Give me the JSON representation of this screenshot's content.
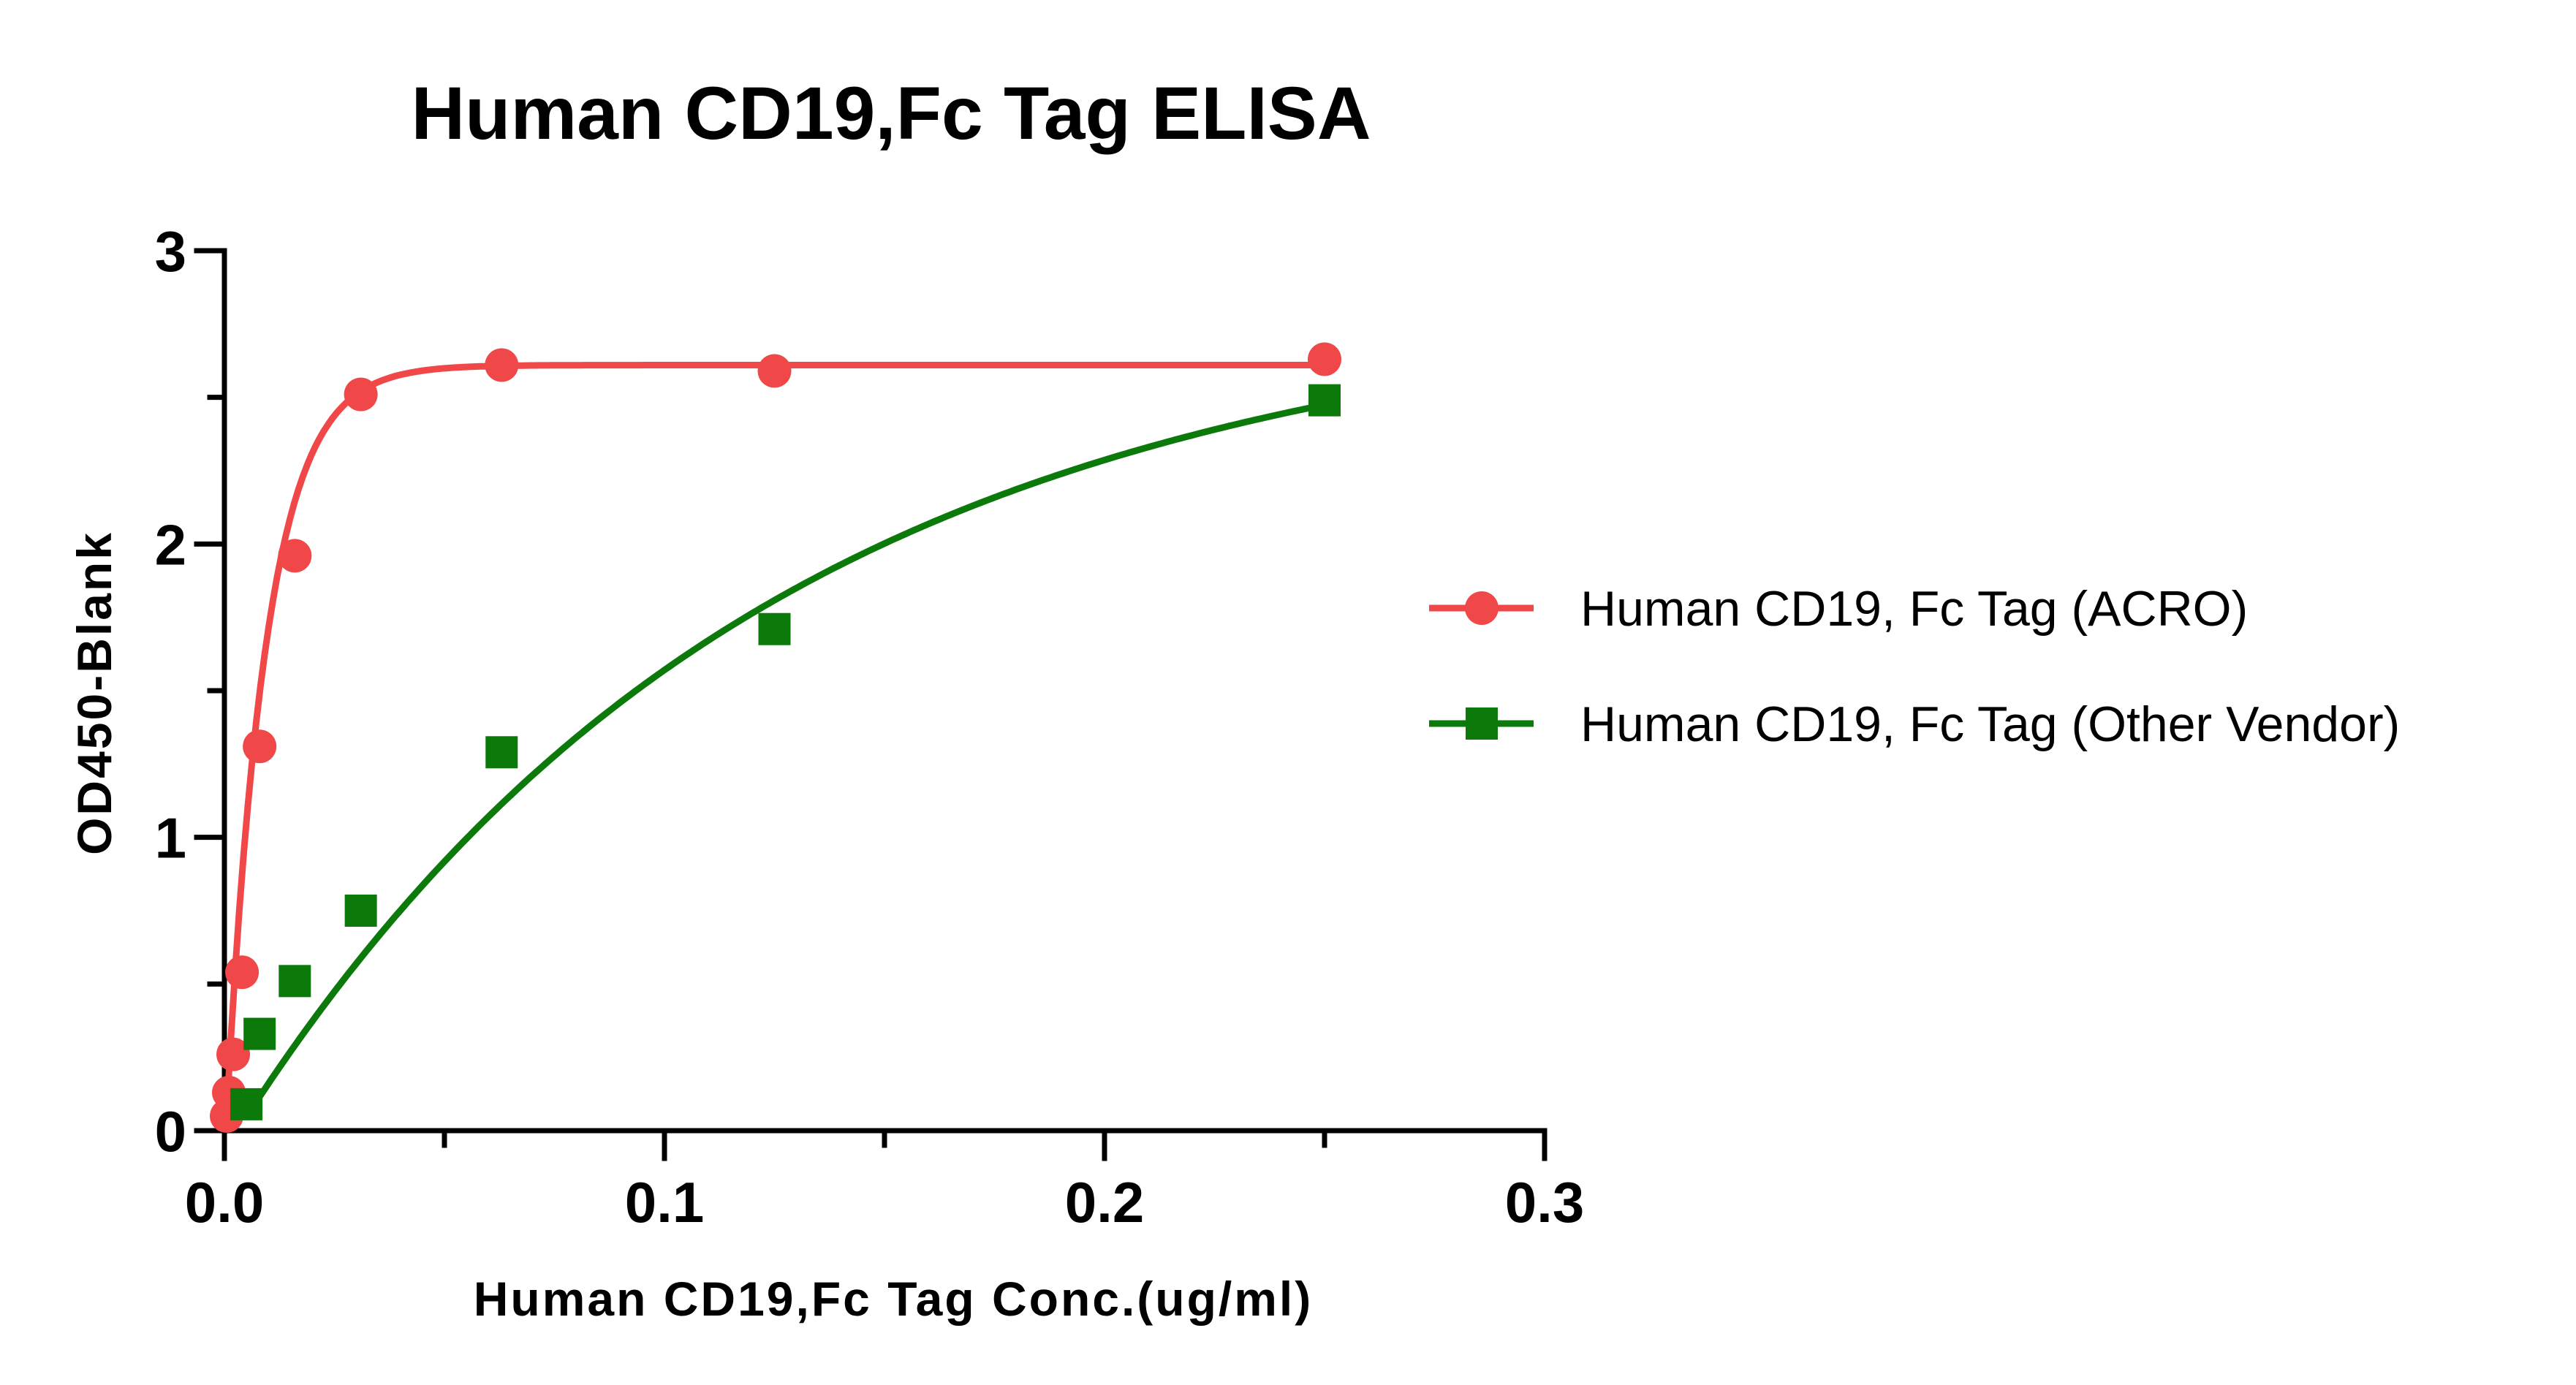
{
  "chart_data": {
    "type": "scatter",
    "title": "Human CD19,Fc Tag ELISA",
    "xlabel": "Human CD19,Fc Tag Conc.(ug/ml)",
    "ylabel": "OD450-Blank",
    "xlim": [
      0,
      0.3
    ],
    "ylim": [
      0,
      3
    ],
    "x_ticks": [
      "0.0",
      "0.1",
      "0.2",
      "0.3"
    ],
    "y_ticks": [
      "0",
      "1",
      "2",
      "3"
    ],
    "grid": false,
    "legend_position": "right",
    "series": [
      {
        "name": "Human CD19, Fc Tag (ACRO)",
        "color": "#f04848",
        "marker": "circle",
        "x": [
          0.0005,
          0.001,
          0.002,
          0.004,
          0.008,
          0.016,
          0.031,
          0.063,
          0.125,
          0.25
        ],
        "y": [
          0.05,
          0.13,
          0.26,
          0.54,
          1.31,
          1.96,
          2.51,
          2.61,
          2.59,
          2.63
        ],
        "fit": {
          "model": "saturation",
          "top": 2.61,
          "rate": 110,
          "x0": 0.0003
        }
      },
      {
        "name": "Human CD19, Fc Tag (Other Vendor)",
        "color": "#0b7a0b",
        "marker": "square",
        "x": [
          0.005,
          0.008,
          0.016,
          0.031,
          0.063,
          0.125,
          0.25
        ],
        "y": [
          0.09,
          0.33,
          0.51,
          0.75,
          1.29,
          1.71,
          2.49
        ],
        "fit": {
          "model": "saturation",
          "top": 2.84,
          "rate": 8.3,
          "x0": 0.003
        }
      }
    ]
  }
}
